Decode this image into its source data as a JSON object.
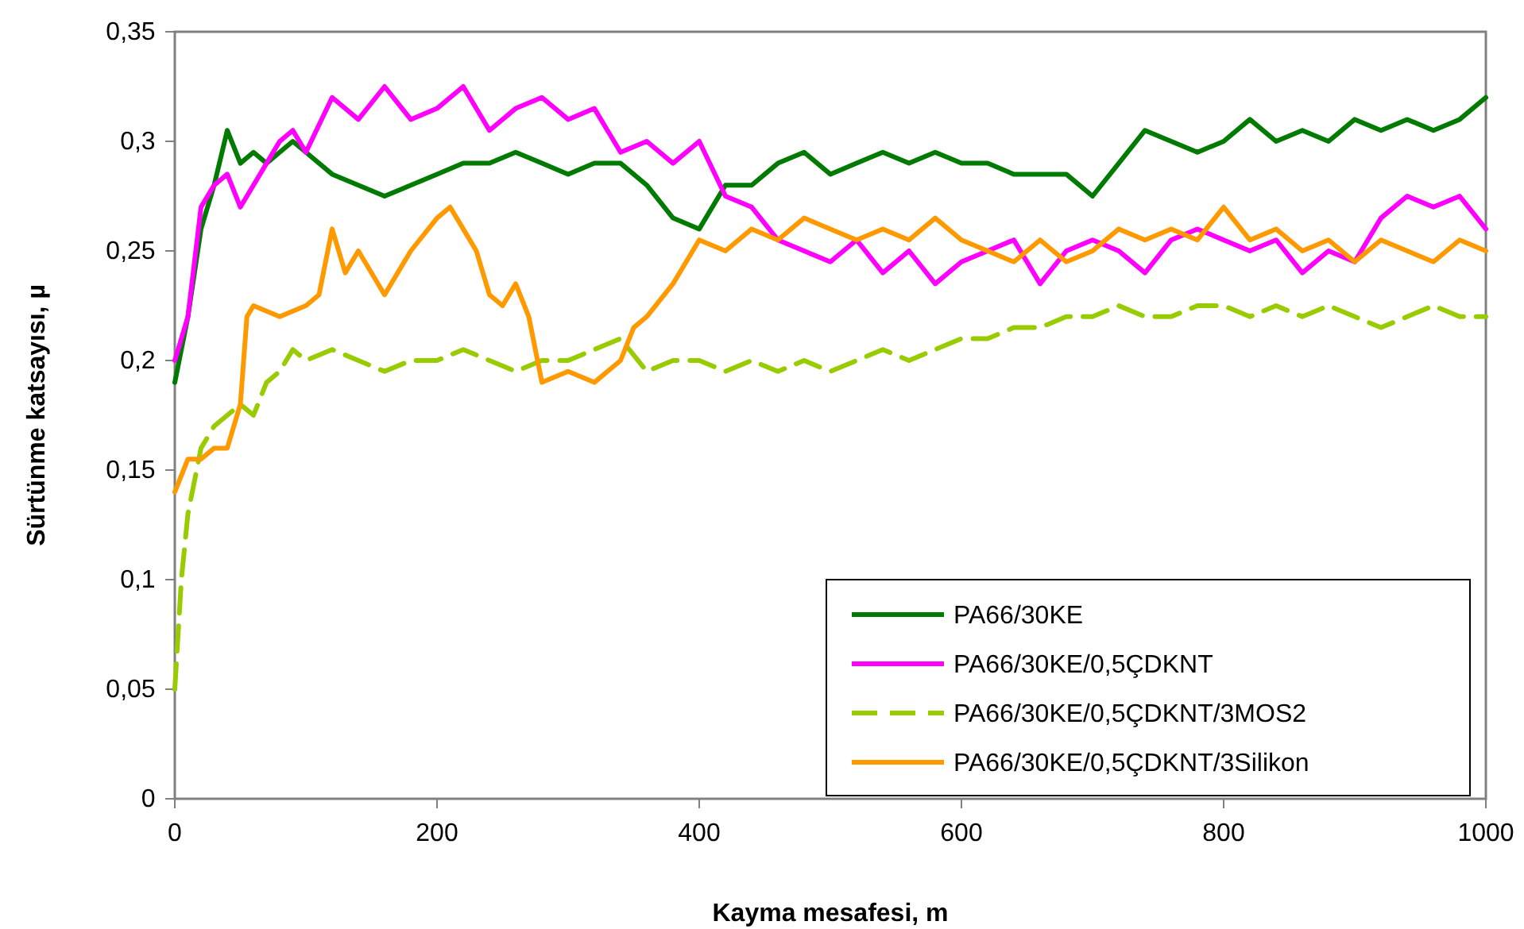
{
  "chart_data": {
    "type": "line",
    "xlabel": "Kayma mesafesi, m",
    "ylabel": "Sürtünme katsayısı, µ",
    "xlim": [
      0,
      1000
    ],
    "ylim": [
      0,
      0.35
    ],
    "xticks": [
      0,
      200,
      400,
      600,
      800,
      1000
    ],
    "yticks": [
      0,
      {
        "value": 0.05,
        "label": "0,05"
      },
      {
        "value": 0.1,
        "label": "0,1"
      },
      {
        "value": 0.15,
        "label": "0,15"
      },
      {
        "value": 0.2,
        "label": "0,2"
      },
      {
        "value": 0.25,
        "label": "0,25"
      },
      {
        "value": 0.3,
        "label": "0,3"
      },
      {
        "value": 0.35,
        "label": "0,35"
      }
    ],
    "grid": false,
    "legend": "bottom right",
    "marker": "none",
    "series": [
      {
        "name": "PA66/30KE",
        "color": "#007a00",
        "line_style": "solid",
        "x": [
          0,
          10,
          20,
          30,
          40,
          50,
          60,
          70,
          80,
          90,
          100,
          120,
          140,
          160,
          180,
          200,
          220,
          240,
          260,
          280,
          300,
          320,
          340,
          360,
          380,
          400,
          420,
          440,
          460,
          480,
          500,
          520,
          540,
          560,
          580,
          600,
          620,
          640,
          660,
          680,
          700,
          720,
          740,
          760,
          780,
          800,
          820,
          840,
          860,
          880,
          900,
          920,
          940,
          960,
          980,
          1000
        ],
        "values": [
          0.19,
          0.22,
          0.26,
          0.28,
          0.305,
          0.29,
          0.295,
          0.29,
          0.295,
          0.3,
          0.295,
          0.285,
          0.28,
          0.275,
          0.28,
          0.285,
          0.29,
          0.29,
          0.295,
          0.29,
          0.285,
          0.29,
          0.29,
          0.28,
          0.265,
          0.26,
          0.28,
          0.28,
          0.29,
          0.295,
          0.285,
          0.29,
          0.295,
          0.29,
          0.295,
          0.29,
          0.29,
          0.285,
          0.285,
          0.285,
          0.275,
          0.29,
          0.305,
          0.3,
          0.295,
          0.3,
          0.31,
          0.3,
          0.305,
          0.3,
          0.31,
          0.305,
          0.31,
          0.305,
          0.31,
          0.32
        ]
      },
      {
        "name": "PA66/30KE/0,5ÇDKNT",
        "color": "#ff00ff",
        "line_style": "solid",
        "x": [
          0,
          10,
          20,
          30,
          40,
          50,
          60,
          70,
          80,
          90,
          100,
          120,
          140,
          160,
          180,
          200,
          220,
          240,
          260,
          280,
          300,
          320,
          340,
          360,
          380,
          400,
          420,
          440,
          460,
          480,
          500,
          520,
          540,
          560,
          580,
          600,
          620,
          640,
          660,
          680,
          700,
          720,
          740,
          760,
          780,
          800,
          820,
          840,
          860,
          880,
          900,
          920,
          940,
          960,
          980,
          1000
        ],
        "values": [
          0.2,
          0.22,
          0.27,
          0.28,
          0.285,
          0.27,
          0.28,
          0.29,
          0.3,
          0.305,
          0.295,
          0.32,
          0.31,
          0.325,
          0.31,
          0.315,
          0.325,
          0.305,
          0.315,
          0.32,
          0.31,
          0.315,
          0.295,
          0.3,
          0.29,
          0.3,
          0.275,
          0.27,
          0.255,
          0.25,
          0.245,
          0.255,
          0.24,
          0.25,
          0.235,
          0.245,
          0.25,
          0.255,
          0.235,
          0.25,
          0.255,
          0.25,
          0.24,
          0.255,
          0.26,
          0.255,
          0.25,
          0.255,
          0.24,
          0.25,
          0.245,
          0.265,
          0.275,
          0.27,
          0.275,
          0.26
        ]
      },
      {
        "name": "PA66/30KE/0,5ÇDKNT/3MOS2",
        "color": "#99cc00",
        "line_style": "dashed",
        "x": [
          0,
          5,
          10,
          20,
          30,
          40,
          50,
          60,
          70,
          80,
          90,
          100,
          120,
          140,
          160,
          180,
          200,
          220,
          240,
          260,
          280,
          300,
          320,
          340,
          360,
          380,
          400,
          420,
          440,
          460,
          480,
          500,
          520,
          540,
          560,
          580,
          600,
          620,
          640,
          660,
          680,
          700,
          720,
          740,
          760,
          780,
          800,
          820,
          840,
          860,
          880,
          900,
          920,
          940,
          960,
          980,
          1000
        ],
        "values": [
          0.05,
          0.1,
          0.13,
          0.16,
          0.17,
          0.175,
          0.18,
          0.175,
          0.19,
          0.195,
          0.205,
          0.2,
          0.205,
          0.2,
          0.195,
          0.2,
          0.2,
          0.205,
          0.2,
          0.195,
          0.2,
          0.2,
          0.205,
          0.21,
          0.195,
          0.2,
          0.2,
          0.195,
          0.2,
          0.195,
          0.2,
          0.195,
          0.2,
          0.205,
          0.2,
          0.205,
          0.21,
          0.21,
          0.215,
          0.215,
          0.22,
          0.22,
          0.225,
          0.22,
          0.22,
          0.225,
          0.225,
          0.22,
          0.225,
          0.22,
          0.225,
          0.22,
          0.215,
          0.22,
          0.225,
          0.22,
          0.22
        ]
      },
      {
        "name": "PA66/30KE/0,5ÇDKNT/3Silikon",
        "color": "#ff9900",
        "line_style": "solid",
        "x": [
          0,
          10,
          20,
          30,
          40,
          50,
          55,
          60,
          80,
          100,
          110,
          120,
          130,
          140,
          160,
          170,
          180,
          200,
          210,
          220,
          230,
          240,
          250,
          260,
          270,
          280,
          300,
          320,
          340,
          350,
          360,
          380,
          400,
          420,
          440,
          460,
          480,
          500,
          520,
          540,
          560,
          580,
          600,
          620,
          640,
          660,
          680,
          700,
          720,
          740,
          760,
          780,
          800,
          820,
          840,
          860,
          880,
          900,
          920,
          940,
          960,
          980,
          1000
        ],
        "values": [
          0.14,
          0.155,
          0.155,
          0.16,
          0.16,
          0.18,
          0.22,
          0.225,
          0.22,
          0.225,
          0.23,
          0.26,
          0.24,
          0.25,
          0.23,
          0.24,
          0.25,
          0.265,
          0.27,
          0.26,
          0.25,
          0.23,
          0.225,
          0.235,
          0.22,
          0.19,
          0.195,
          0.19,
          0.2,
          0.215,
          0.22,
          0.235,
          0.255,
          0.25,
          0.26,
          0.255,
          0.265,
          0.26,
          0.255,
          0.26,
          0.255,
          0.265,
          0.255,
          0.25,
          0.245,
          0.255,
          0.245,
          0.25,
          0.26,
          0.255,
          0.26,
          0.255,
          0.27,
          0.255,
          0.26,
          0.25,
          0.255,
          0.245,
          0.255,
          0.25,
          0.245,
          0.255,
          0.25
        ]
      }
    ]
  }
}
